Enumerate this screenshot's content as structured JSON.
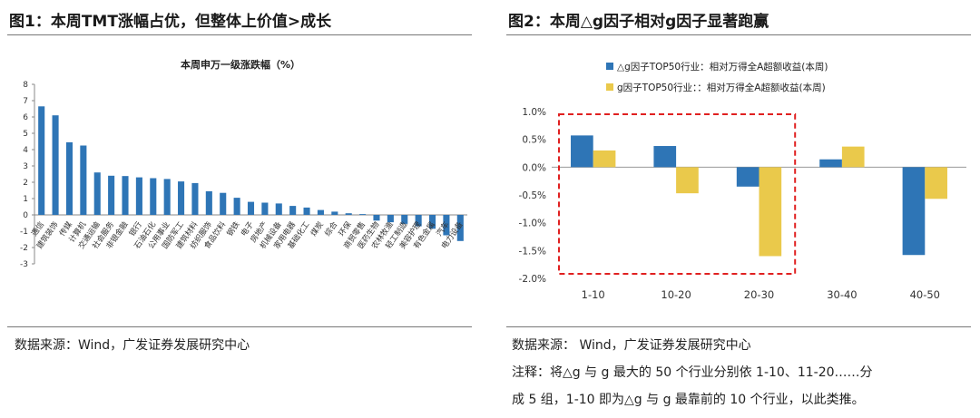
{
  "left": {
    "figure_title": "图1：本周TMT涨幅占优，但整体上价值>成长",
    "source": "数据来源：Wind，广发证券发展研究中心"
  },
  "right": {
    "figure_title": "图2：本周△g因子相对g因子显著跑赢",
    "source": "数据来源：  Wind，广发证券发展研究中心",
    "note_line1": "注释：将△g 与 g 最大的 50 个行业分别依 1-10、11-20……分",
    "note_line2": "成 5 组，1-10 即为△g 与 g 最靠前的 10 个行业，以此类推。"
  },
  "colors": {
    "blue": "#2E75B6",
    "gold": "#EAC94B",
    "red": "#E02020",
    "rule": "#777777"
  },
  "chart_data": [
    {
      "type": "bar",
      "title": "本周申万一级涨跌幅（%）",
      "categories": [
        "通信",
        "建筑装饰",
        "传媒",
        "计算机",
        "交通运输",
        "社会服务",
        "非银金融",
        "银行",
        "石油石化",
        "公用事业",
        "国防军工",
        "建筑材料",
        "纺织服饰",
        "食品饮料",
        "钢铁",
        "电子",
        "房地产",
        "机械设备",
        "家用电器",
        "基础化工",
        "煤炭",
        "综合",
        "环保",
        "商贸零售",
        "医药生物",
        "农林牧渔",
        "轻工制造",
        "美容护理",
        "有色金属",
        "汽车",
        "电力设备"
      ],
      "values": [
        6.65,
        6.1,
        4.45,
        4.25,
        2.6,
        2.4,
        2.38,
        2.3,
        2.25,
        2.2,
        2.05,
        1.95,
        1.45,
        1.35,
        1.05,
        0.8,
        0.75,
        0.7,
        0.55,
        0.45,
        0.3,
        0.2,
        0.1,
        0.05,
        -0.35,
        -0.45,
        -0.55,
        -0.7,
        -0.85,
        -1.25,
        -1.6
      ],
      "ylim": [
        -3,
        8
      ],
      "yticks": [
        -3,
        -2,
        -1,
        0,
        1,
        2,
        3,
        4,
        5,
        6,
        7,
        8
      ],
      "xlabel": "",
      "ylabel": ""
    },
    {
      "type": "bar",
      "categories": [
        "1-10",
        "10-20",
        "20-30",
        "30-40",
        "40-50"
      ],
      "series": [
        {
          "name": "△g因子TOP50行业：相对万得全A超额收益(本周)",
          "values": [
            0.57,
            0.38,
            -0.35,
            0.14,
            -1.58
          ]
        },
        {
          "name": "g因子TOP50行业：：相对万得全A超额收益(本周)",
          "values": [
            0.3,
            -0.47,
            -1.6,
            0.37,
            -0.57
          ]
        }
      ],
      "ylim": [
        -2.0,
        1.0
      ],
      "yticks": [
        "1.0%",
        "0.5%",
        "0.0%",
        "-0.5%",
        "-1.0%",
        "-1.5%",
        "-2.0%"
      ],
      "ytick_values": [
        1.0,
        0.5,
        0.0,
        -0.5,
        -1.0,
        -1.5,
        -2.0
      ],
      "highlight_range": [
        "1-10",
        "20-30"
      ],
      "legend_position": "top",
      "xlabel": "",
      "ylabel": ""
    }
  ]
}
